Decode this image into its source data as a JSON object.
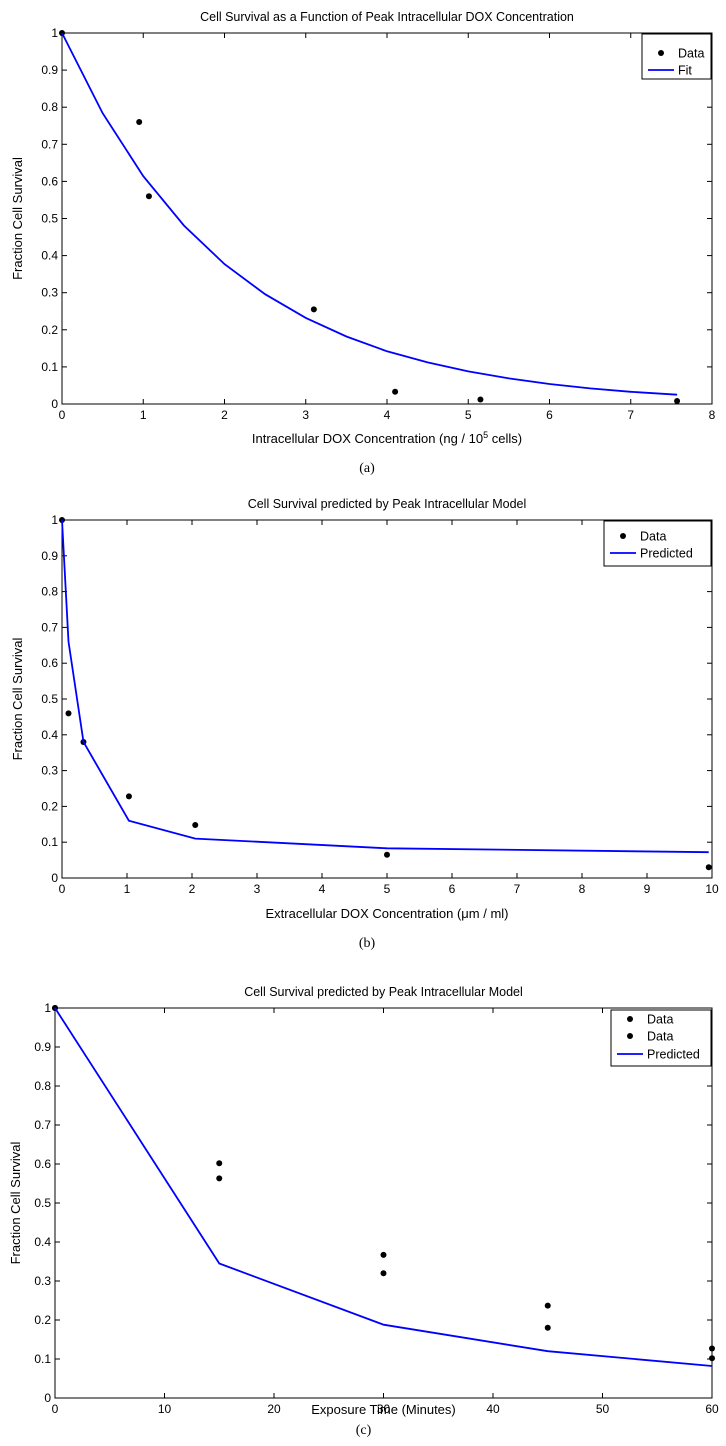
{
  "chart_data": [
    {
      "type": "scatter",
      "title": "Cell Survival as a Function of Peak Intracellular DOX Concentration",
      "xlabel_parts": [
        "Intracellular DOX Concentration (ng / 10",
        "5",
        " cells)"
      ],
      "ylabel": "Fraction Cell Survival",
      "xlim": [
        0,
        8
      ],
      "ylim": [
        0,
        1
      ],
      "xticks": [
        "0",
        "1",
        "2",
        "3",
        "4",
        "5",
        "6",
        "7",
        "8"
      ],
      "yticks": [
        "0",
        "0.1",
        "0.2",
        "0.3",
        "0.4",
        "0.5",
        "0.6",
        "0.7",
        "0.8",
        "0.9",
        "1"
      ],
      "caption": "(a)",
      "series": [
        {
          "name": "Data",
          "kind": "points",
          "x": [
            0,
            0.95,
            1.07,
            3.1,
            4.1,
            5.15,
            7.57
          ],
          "y": [
            1.0,
            0.76,
            0.56,
            0.255,
            0.033,
            0.012,
            0.008
          ]
        },
        {
          "name": "Fit",
          "kind": "line",
          "color": "#0000ff",
          "x": [
            0,
            0.5,
            1,
            1.5,
            2,
            2.5,
            3,
            3.5,
            4,
            4.5,
            5,
            5.5,
            6,
            6.5,
            7,
            7.57
          ],
          "y": [
            1.0,
            0.784,
            0.614,
            0.481,
            0.377,
            0.296,
            0.232,
            0.182,
            0.142,
            0.112,
            0.088,
            0.069,
            0.054,
            0.042,
            0.033,
            0.025
          ]
        }
      ],
      "legend": {
        "position": "top-right"
      }
    },
    {
      "type": "line",
      "title": "Cell Survival predicted by Peak Intracellular Model",
      "xlabel_parts": [
        "Extracellular DOX Concentration (",
        "μ",
        "m / ml)"
      ],
      "ylabel": "Fraction Cell Survival",
      "xlim": [
        0,
        10
      ],
      "ylim": [
        0,
        1
      ],
      "xticks": [
        "0",
        "1",
        "2",
        "3",
        "4",
        "5",
        "6",
        "7",
        "8",
        "9",
        "10"
      ],
      "yticks": [
        "0",
        "0.1",
        "0.2",
        "0.3",
        "0.4",
        "0.5",
        "0.6",
        "0.7",
        "0.8",
        "0.9",
        "1"
      ],
      "caption": "(b)",
      "series": [
        {
          "name": "Data",
          "kind": "points",
          "x": [
            0,
            0.1,
            0.33,
            1.03,
            2.05,
            5.0,
            9.95
          ],
          "y": [
            1.0,
            0.46,
            0.38,
            0.228,
            0.148,
            0.065,
            0.03
          ]
        },
        {
          "name": "Predicted",
          "kind": "line",
          "color": "#0000ff",
          "x": [
            0,
            0.1,
            0.33,
            1.03,
            2.05,
            5.0,
            9.95
          ],
          "y": [
            1.0,
            0.66,
            0.38,
            0.16,
            0.11,
            0.083,
            0.072
          ]
        }
      ],
      "legend": {
        "position": "top-right"
      }
    },
    {
      "type": "line",
      "title": "Cell Survival predicted by Peak Intracellular Model",
      "xlabel_parts": [
        "Exposure Time (Minutes)"
      ],
      "ylabel": "Fraction Cell Survival",
      "xlim": [
        0,
        60
      ],
      "ylim": [
        0,
        1
      ],
      "xticks": [
        "0",
        "10",
        "20",
        "30",
        "40",
        "50",
        "60"
      ],
      "yticks": [
        "0",
        "0.1",
        "0.2",
        "0.3",
        "0.4",
        "0.5",
        "0.6",
        "0.7",
        "0.8",
        "0.9",
        "1"
      ],
      "caption": "(c)",
      "series": [
        {
          "name": "Data",
          "kind": "points",
          "x": [
            0,
            15,
            30,
            45,
            60
          ],
          "y": [
            1.0,
            0.602,
            0.367,
            0.237,
            0.127
          ]
        },
        {
          "name": "Data",
          "kind": "points",
          "x": [
            0,
            15,
            30,
            45,
            60
          ],
          "y": [
            1.0,
            0.563,
            0.32,
            0.18,
            0.102
          ]
        },
        {
          "name": "Predicted",
          "kind": "line",
          "color": "#0000ff",
          "x": [
            0,
            15,
            30,
            45,
            60
          ],
          "y": [
            1.0,
            0.345,
            0.188,
            0.12,
            0.082
          ]
        }
      ],
      "legend": {
        "position": "top-right"
      }
    }
  ]
}
